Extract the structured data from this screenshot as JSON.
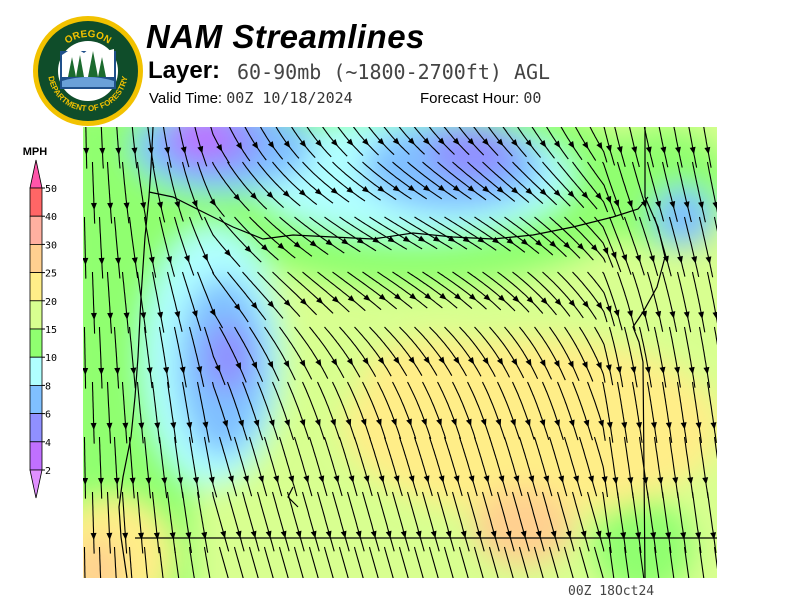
{
  "header": {
    "title": "NAM Streamlines",
    "layer_label": "Layer:",
    "layer_value": "60-90mb (~1800-2700ft) AGL",
    "valid_label": "Valid Time:",
    "valid_value": "00Z 10/18/2024",
    "forecast_label": "Forecast Hour:",
    "forecast_value": "00"
  },
  "logo": {
    "text_top": "OREGON",
    "text_bottom": "DEPARTMENT OF FORESTRY",
    "colors": {
      "ring": "#f2c200",
      "field": "#0f4d2a"
    }
  },
  "legend": {
    "unit": "MPH",
    "ticks": [
      "50",
      "40",
      "30",
      "25",
      "20",
      "15",
      "10",
      "8",
      "6",
      "4",
      "2"
    ],
    "bands": [
      {
        "range": ">50",
        "color": "#ff55aa"
      },
      {
        "range": "40-50",
        "color": "#ff6666"
      },
      {
        "range": "30-40",
        "color": "#ffb0a0"
      },
      {
        "range": "25-30",
        "color": "#ffd090"
      },
      {
        "range": "20-25",
        "color": "#ffee88"
      },
      {
        "range": "15-20",
        "color": "#d8ff90"
      },
      {
        "range": "10-15",
        "color": "#90ff70"
      },
      {
        "range": "8-10",
        "color": "#b0ffff"
      },
      {
        "range": "6-8",
        "color": "#80c0ff"
      },
      {
        "range": "4-6",
        "color": "#9090ff"
      },
      {
        "range": "2-4",
        "color": "#c070ff"
      },
      {
        "range": "<2",
        "color": "#e090ff"
      }
    ]
  },
  "map": {
    "region": "Oregon",
    "field": "wind streamlines"
  },
  "footer": {
    "stamp": "00Z 18Oct24"
  }
}
